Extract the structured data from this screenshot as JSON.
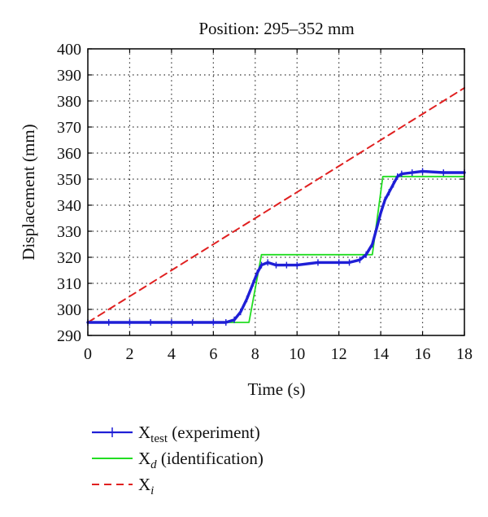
{
  "chart_data": {
    "type": "line",
    "title": "Position: 295–352 mm",
    "xlabel": "Time (s)",
    "ylabel": "Displacement (mm)",
    "xlim": [
      0,
      18
    ],
    "ylim": [
      290,
      400
    ],
    "xticks": [
      "0",
      "2",
      "4",
      "6",
      "8",
      "10",
      "12",
      "14",
      "16",
      "18"
    ],
    "yticks": [
      "290",
      "300",
      "310",
      "320",
      "330",
      "340",
      "350",
      "360",
      "370",
      "380",
      "390",
      "400"
    ],
    "grid": true,
    "grid_style": "dotted",
    "legend_position": "below",
    "series": [
      {
        "name": "X_test (experiment)",
        "legend_main": "X",
        "legend_sub": "test",
        "legend_rest": " (experiment)",
        "color": "#1f1fd6",
        "style": "solid-with-markers",
        "x": [
          0,
          1,
          2,
          3,
          4,
          5,
          6,
          6.6,
          7.0,
          7.3,
          7.6,
          7.9,
          8.1,
          8.3,
          8.6,
          9.0,
          9.5,
          10,
          11,
          12,
          12.5,
          13,
          13.3,
          13.6,
          13.8,
          14.0,
          14.2,
          14.4,
          14.6,
          14.8,
          15.0,
          15.5,
          16,
          17,
          18
        ],
        "y": [
          295,
          295,
          295,
          295,
          295,
          295,
          295,
          295,
          296,
          299,
          304,
          310,
          314,
          317,
          318,
          317,
          317,
          317,
          318,
          318,
          318,
          319,
          321,
          325,
          331,
          337,
          342,
          345,
          348,
          351,
          352,
          352.5,
          353,
          352.5,
          352.5
        ]
      },
      {
        "name": "X_d (identification)",
        "legend_main": "X",
        "legend_sub": "d",
        "legend_rest": " (identification)",
        "color": "#22dd22",
        "style": "solid",
        "x": [
          0,
          7.7,
          8.3,
          13.6,
          14.1,
          18
        ],
        "y": [
          295,
          295,
          321,
          321,
          351,
          351
        ]
      },
      {
        "name": "X_i",
        "legend_main": "X",
        "legend_sub": "i",
        "legend_rest": "",
        "color": "#e02020",
        "style": "dashed",
        "x": [
          0,
          18
        ],
        "y": [
          295,
          385
        ]
      }
    ]
  }
}
